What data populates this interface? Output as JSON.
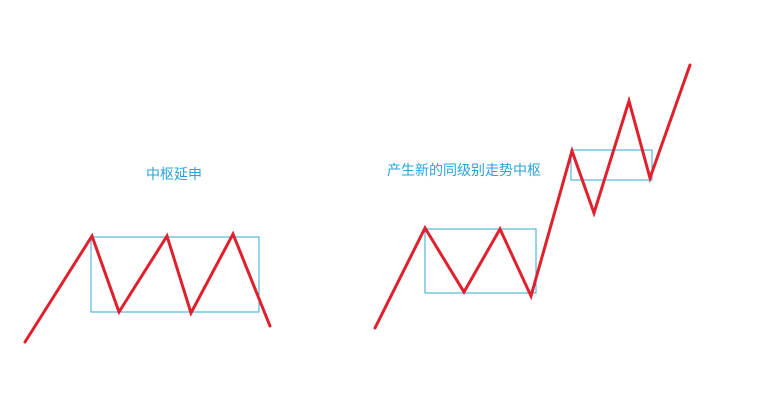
{
  "labels": {
    "left": "中枢延申",
    "right": "产生新的同级别走势中枢"
  },
  "colors": {
    "price_line": "#e0202c",
    "pivot_box": "#33a7cf",
    "label_text": "#2aa3d8",
    "background": "#ffffff"
  }
}
